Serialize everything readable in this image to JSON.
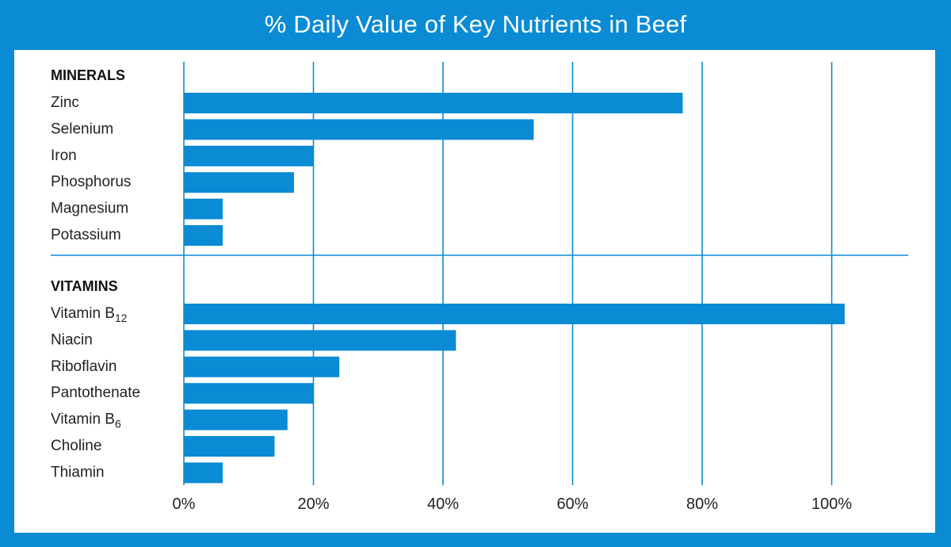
{
  "title": "% Daily Value of Key Nutrients in Beef",
  "colors": {
    "frame": "#0a8bd4",
    "bar": "#0a8bd4",
    "grid": "#0a8bd4"
  },
  "chart_data": {
    "type": "bar",
    "orientation": "horizontal",
    "title": "% Daily Value of Key Nutrients in Beef",
    "xlabel": "",
    "ylabel": "",
    "xlim": [
      0,
      110
    ],
    "x_ticks": [
      "0%",
      "20%",
      "40%",
      "60%",
      "80%",
      "100%"
    ],
    "grid": true,
    "groups": [
      {
        "name": "MINERALS",
        "categories": [
          "Zinc",
          "Selenium",
          "Iron",
          "Phosphorus",
          "Magnesium",
          "Potassium"
        ],
        "values": [
          77,
          54,
          20,
          17,
          6,
          6
        ]
      },
      {
        "name": "VITAMINS",
        "categories": [
          "Vitamin B12",
          "Niacin",
          "Riboflavin",
          "Pantothenate",
          "Vitamin B6",
          "Choline",
          "Thiamin"
        ],
        "values": [
          102,
          42,
          24,
          20,
          16,
          14,
          6
        ]
      }
    ]
  }
}
